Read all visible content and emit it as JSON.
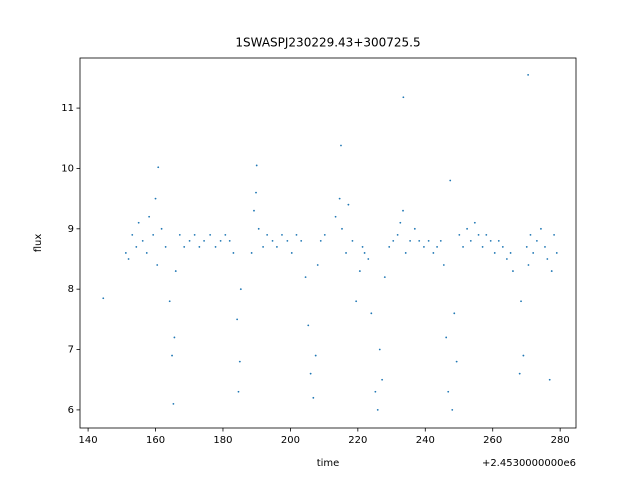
{
  "chart_data": {
    "type": "scatter",
    "title": "1SWASPJ230229.43+300725.5",
    "x_label": "time",
    "y_label": "flux",
    "x_offset_label": "+2.4530000000e6",
    "color": "#1f77b4",
    "xlim": [
      137.6,
      284.7
    ],
    "ylim": [
      5.7,
      11.83
    ],
    "xticks": [
      140,
      160,
      180,
      200,
      220,
      240,
      260,
      280
    ],
    "yticks": [
      6,
      7,
      8,
      9,
      10,
      11
    ],
    "grid": false,
    "x": [
      144.5,
      151.2,
      152.0,
      153.1,
      154.3,
      155.0,
      156.2,
      157.4,
      158.1,
      159.3,
      160.0,
      160.5,
      161.8,
      163.0,
      164.2,
      164.9,
      165.3,
      165.6,
      166.0,
      167.2,
      168.5,
      170.1,
      171.6,
      173.0,
      174.4,
      176.2,
      177.8,
      179.3,
      180.7,
      182.0,
      183.1,
      184.2,
      184.6,
      185.0,
      185.3,
      188.5,
      189.2,
      189.8,
      190.6,
      191.9,
      193.1,
      194.7,
      196.0,
      197.5,
      199.1,
      200.4,
      201.8,
      203.2,
      204.5,
      205.3,
      206.0,
      206.8,
      207.5,
      208.1,
      209.0,
      210.2,
      213.4,
      214.6,
      215.3,
      216.5,
      217.2,
      218.4,
      219.5,
      220.6,
      221.4,
      222.0,
      223.1,
      224.0,
      225.2,
      225.9,
      226.5,
      227.2,
      228.0,
      229.3,
      230.5,
      231.8,
      232.6,
      233.4,
      234.2,
      235.5,
      236.9,
      238.2,
      239.6,
      241.0,
      242.4,
      243.5,
      244.6,
      245.5,
      246.2,
      246.8,
      247.4,
      248.0,
      248.6,
      249.3,
      250.1,
      251.2,
      252.4,
      253.5,
      254.7,
      255.8,
      257.0,
      258.1,
      259.4,
      260.6,
      261.8,
      263.0,
      264.2,
      265.3,
      266.0,
      268.0,
      268.4,
      269.1,
      270.1,
      270.6,
      271.2,
      272.0,
      273.1,
      274.3,
      275.5,
      276.2,
      276.9,
      277.5,
      278.2,
      279.0,
      233.5,
      270.5,
      160.8,
      190.0,
      215.0
    ],
    "values": [
      7.85,
      8.6,
      8.5,
      8.9,
      8.7,
      9.1,
      8.8,
      8.6,
      9.2,
      8.9,
      9.5,
      8.4,
      9.0,
      8.7,
      7.8,
      6.9,
      6.1,
      7.2,
      8.3,
      8.9,
      8.7,
      8.8,
      8.9,
      8.7,
      8.8,
      8.9,
      8.7,
      8.8,
      8.9,
      8.8,
      8.6,
      7.5,
      6.3,
      6.8,
      8.0,
      8.6,
      9.3,
      9.6,
      9.0,
      8.7,
      8.9,
      8.8,
      8.7,
      8.9,
      8.8,
      8.6,
      8.9,
      8.8,
      8.2,
      7.4,
      6.6,
      6.2,
      6.9,
      8.4,
      8.8,
      8.9,
      9.2,
      9.5,
      9.0,
      8.6,
      9.4,
      8.8,
      7.8,
      8.3,
      8.7,
      8.6,
      8.5,
      7.6,
      6.3,
      6.0,
      7.0,
      6.5,
      8.2,
      8.7,
      8.8,
      8.9,
      9.1,
      9.3,
      8.6,
      8.8,
      9.0,
      8.8,
      8.7,
      8.8,
      8.6,
      8.7,
      8.8,
      8.4,
      7.2,
      6.3,
      9.8,
      6.0,
      7.6,
      6.8,
      8.9,
      8.7,
      9.0,
      8.8,
      9.1,
      8.9,
      8.7,
      8.9,
      8.8,
      8.6,
      8.8,
      8.7,
      8.5,
      8.6,
      8.3,
      6.6,
      7.8,
      6.9,
      8.7,
      8.4,
      8.9,
      8.6,
      8.8,
      9.0,
      8.7,
      8.5,
      6.5,
      8.3,
      8.9,
      8.6,
      11.18,
      11.55,
      10.02,
      10.05,
      10.38
    ]
  }
}
